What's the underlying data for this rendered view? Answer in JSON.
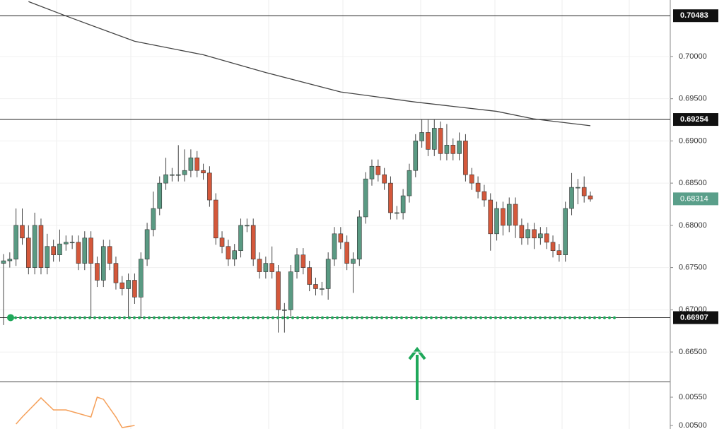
{
  "chart_data": {
    "type": "candlestick",
    "up_color": "#5a9a83",
    "down_color": "#d4583b",
    "ylim": [
      0.66149,
      0.70669
    ],
    "yticks": [
      {
        "value": 0.7,
        "label": "0.70000"
      },
      {
        "value": 0.695,
        "label": "0.69500"
      },
      {
        "value": 0.69,
        "label": "0.69000"
      },
      {
        "value": 0.685,
        "label": "0.68500"
      },
      {
        "value": 0.68,
        "label": "0.68000"
      },
      {
        "value": 0.675,
        "label": "0.67500"
      },
      {
        "value": 0.67,
        "label": "0.67000"
      },
      {
        "value": 0.665,
        "label": "0.66500"
      }
    ],
    "candles": [
      [
        0.6755,
        0.6766,
        0.6682,
        0.6758
      ],
      [
        0.6758,
        0.6768,
        0.675,
        0.676
      ],
      [
        0.676,
        0.682,
        0.6752,
        0.68
      ],
      [
        0.68,
        0.682,
        0.6777,
        0.6785
      ],
      [
        0.6785,
        0.68,
        0.6742,
        0.675
      ],
      [
        0.675,
        0.6815,
        0.6742,
        0.68
      ],
      [
        0.68,
        0.6808,
        0.6742,
        0.675
      ],
      [
        0.675,
        0.679,
        0.6742,
        0.6775
      ],
      [
        0.6775,
        0.6783,
        0.6757,
        0.6765
      ],
      [
        0.6765,
        0.6795,
        0.6757,
        0.6778
      ],
      [
        0.6778,
        0.6788,
        0.677,
        0.678
      ],
      [
        0.678,
        0.6788,
        0.6772,
        0.678
      ],
      [
        0.678,
        0.6788,
        0.6747,
        0.6755
      ],
      [
        0.6755,
        0.6793,
        0.6747,
        0.6785
      ],
      [
        0.6785,
        0.6793,
        0.669,
        0.6755
      ],
      [
        0.6755,
        0.6763,
        0.6727,
        0.6735
      ],
      [
        0.6735,
        0.6783,
        0.6727,
        0.6775
      ],
      [
        0.6775,
        0.6783,
        0.6747,
        0.6755
      ],
      [
        0.6755,
        0.6763,
        0.6724,
        0.6732
      ],
      [
        0.6732,
        0.674,
        0.6717,
        0.6725
      ],
      [
        0.6725,
        0.6743,
        0.669,
        0.6735
      ],
      [
        0.6735,
        0.6743,
        0.6707,
        0.6715
      ],
      [
        0.6715,
        0.6768,
        0.669,
        0.676
      ],
      [
        0.676,
        0.6803,
        0.6752,
        0.6795
      ],
      [
        0.6795,
        0.684,
        0.6787,
        0.682
      ],
      [
        0.682,
        0.6858,
        0.6812,
        0.685
      ],
      [
        0.685,
        0.688,
        0.6842,
        0.686
      ],
      [
        0.686,
        0.6868,
        0.6852,
        0.686
      ],
      [
        0.686,
        0.6895,
        0.6852,
        0.686
      ],
      [
        0.686,
        0.689,
        0.6852,
        0.6865
      ],
      [
        0.6865,
        0.689,
        0.6857,
        0.688
      ],
      [
        0.688,
        0.6888,
        0.6857,
        0.6865
      ],
      [
        0.6865,
        0.6873,
        0.6854,
        0.6862
      ],
      [
        0.6862,
        0.687,
        0.6822,
        0.683
      ],
      [
        0.683,
        0.6838,
        0.6777,
        0.6785
      ],
      [
        0.6785,
        0.6793,
        0.6767,
        0.6775
      ],
      [
        0.6775,
        0.6783,
        0.6752,
        0.676
      ],
      [
        0.676,
        0.6778,
        0.6752,
        0.677
      ],
      [
        0.677,
        0.6808,
        0.6762,
        0.68
      ],
      [
        0.68,
        0.6808,
        0.6792,
        0.68
      ],
      [
        0.68,
        0.6808,
        0.6752,
        0.676
      ],
      [
        0.676,
        0.6768,
        0.6737,
        0.6745
      ],
      [
        0.6745,
        0.6763,
        0.6737,
        0.6755
      ],
      [
        0.6755,
        0.6775,
        0.6737,
        0.6745
      ],
      [
        0.6745,
        0.6753,
        0.6673,
        0.67
      ],
      [
        0.67,
        0.6708,
        0.6673,
        0.67
      ],
      [
        0.67,
        0.6753,
        0.6692,
        0.6745
      ],
      [
        0.6745,
        0.6773,
        0.6737,
        0.6765
      ],
      [
        0.6765,
        0.6773,
        0.6742,
        0.675
      ],
      [
        0.675,
        0.6758,
        0.6722,
        0.673
      ],
      [
        0.673,
        0.6738,
        0.6717,
        0.6725
      ],
      [
        0.6725,
        0.6733,
        0.6717,
        0.6725
      ],
      [
        0.6725,
        0.6768,
        0.6712,
        0.676
      ],
      [
        0.676,
        0.6798,
        0.6752,
        0.679
      ],
      [
        0.679,
        0.6798,
        0.6772,
        0.678
      ],
      [
        0.678,
        0.6788,
        0.6747,
        0.6755
      ],
      [
        0.6755,
        0.6768,
        0.672,
        0.676
      ],
      [
        0.676,
        0.6818,
        0.6752,
        0.681
      ],
      [
        0.681,
        0.6863,
        0.6802,
        0.6855
      ],
      [
        0.6855,
        0.6878,
        0.6847,
        0.687
      ],
      [
        0.687,
        0.6878,
        0.6852,
        0.686
      ],
      [
        0.686,
        0.6868,
        0.6842,
        0.685
      ],
      [
        0.685,
        0.6858,
        0.6807,
        0.6815
      ],
      [
        0.6815,
        0.6823,
        0.6807,
        0.6815
      ],
      [
        0.6815,
        0.6843,
        0.6807,
        0.6835
      ],
      [
        0.6835,
        0.6873,
        0.6827,
        0.6865
      ],
      [
        0.6865,
        0.6908,
        0.6857,
        0.69
      ],
      [
        0.69,
        0.6925,
        0.6892,
        0.691
      ],
      [
        0.691,
        0.6925,
        0.6882,
        0.689
      ],
      [
        0.689,
        0.6925,
        0.6882,
        0.6915
      ],
      [
        0.6915,
        0.6923,
        0.6877,
        0.6885
      ],
      [
        0.6885,
        0.692,
        0.6877,
        0.6895
      ],
      [
        0.6895,
        0.6903,
        0.6877,
        0.6885
      ],
      [
        0.6885,
        0.691,
        0.6877,
        0.69
      ],
      [
        0.69,
        0.6908,
        0.6852,
        0.686
      ],
      [
        0.686,
        0.6868,
        0.6842,
        0.685
      ],
      [
        0.685,
        0.6858,
        0.6832,
        0.684
      ],
      [
        0.684,
        0.6848,
        0.6822,
        0.683
      ],
      [
        0.683,
        0.6838,
        0.677,
        0.679
      ],
      [
        0.679,
        0.6828,
        0.6782,
        0.682
      ],
      [
        0.682,
        0.6828,
        0.6788,
        0.68
      ],
      [
        0.68,
        0.6833,
        0.6792,
        0.6825
      ],
      [
        0.6825,
        0.6833,
        0.6785,
        0.68
      ],
      [
        0.68,
        0.6808,
        0.6777,
        0.6785
      ],
      [
        0.6785,
        0.6803,
        0.6777,
        0.6795
      ],
      [
        0.6795,
        0.6803,
        0.6772,
        0.6785
      ],
      [
        0.6785,
        0.6798,
        0.6777,
        0.679
      ],
      [
        0.679,
        0.6798,
        0.6772,
        0.678
      ],
      [
        0.678,
        0.6788,
        0.6762,
        0.677
      ],
      [
        0.677,
        0.6778,
        0.6757,
        0.6765
      ],
      [
        0.6765,
        0.6828,
        0.6757,
        0.682
      ],
      [
        0.682,
        0.6862,
        0.6812,
        0.6845
      ],
      [
        0.6845,
        0.6855,
        0.6825,
        0.6845
      ],
      [
        0.6845,
        0.6858,
        0.6827,
        0.6835
      ],
      [
        0.6835,
        0.684,
        0.6828,
        0.6831
      ]
    ],
    "ma": {
      "color": "#444444",
      "x": [
        4,
        10,
        21,
        32,
        42,
        54,
        66,
        79,
        85,
        94
      ],
      "values": [
        0.7065,
        0.7048,
        0.7018,
        0.7002,
        0.6981,
        0.6958,
        0.6946,
        0.6935,
        0.6926,
        0.6918
      ]
    },
    "levels": [
      {
        "value": 0.70483,
        "label": "0.70483"
      },
      {
        "value": 0.69254,
        "label": "0.69254"
      },
      {
        "value": 0.66907,
        "label": "0.66907",
        "color": "#1fa85a",
        "dotted": true
      }
    ],
    "last_price": {
      "value": 0.68314,
      "label": "0.68314",
      "color": "#5a9f8a"
    },
    "indicator": {
      "color": "#f5a05a",
      "ylim": [
        0.004938,
        0.005775
      ],
      "yticks": [
        {
          "value": 0.0055,
          "label": "0.00550"
        },
        {
          "value": 0.005,
          "label": "0.00500"
        }
      ],
      "x": [
        2,
        3,
        6,
        8,
        10,
        12,
        14,
        15,
        16,
        18,
        19,
        21
      ],
      "values": [
        0.005025,
        0.00515,
        0.005488,
        0.005275,
        0.005275,
        0.005213,
        0.00515,
        0.0055,
        0.005463,
        0.00515,
        0.004963,
        0.005
      ]
    }
  }
}
